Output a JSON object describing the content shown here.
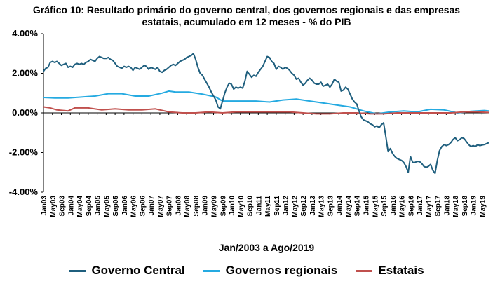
{
  "chart_data": {
    "type": "line",
    "title_line1": "Gráfico 10: Resultado primário do governo central, dos governos regionais e das empresas",
    "title_line2": "estatais, acumulado em 12 meses - % do PIB",
    "xlabel": "Jan/2003 a Ago/2019",
    "ylabel": "",
    "ylim": [
      -4,
      4
    ],
    "yticks": [
      "4.00%",
      "2.00%",
      "0.00%",
      "-2.00%",
      "-4.00%"
    ],
    "ytick_values": [
      4,
      2,
      0,
      -2,
      -4
    ],
    "x_start": "2003-01",
    "x_end": "2019-08",
    "xticks": [
      "Jan03",
      "May03",
      "Sep03",
      "Jan04",
      "May04",
      "Sep04",
      "Jan05",
      "May05",
      "Sep05",
      "Jan06",
      "May06",
      "Sep06",
      "Jan07",
      "May07",
      "Sep07",
      "Jan08",
      "May08",
      "Sep08",
      "Jan09",
      "May09",
      "Sep09",
      "Jan10",
      "May10",
      "Sep10",
      "Jan11",
      "May11",
      "Sep11",
      "Jan12",
      "May12",
      "Sep12",
      "Jan13",
      "May13",
      "Sep13",
      "Jan14",
      "May14",
      "Sep14",
      "Jan15",
      "May15",
      "Sep15",
      "Jan16",
      "May16",
      "Sep16",
      "Jan17",
      "May17",
      "Sep17",
      "Jan18",
      "May18",
      "Sep18",
      "Jan19",
      "May19"
    ],
    "grid": false,
    "legend_position": "bottom",
    "series": [
      {
        "name": "Governo Central",
        "color": "#1F5F7E",
        "points": [
          [
            "2003-01",
            2.1
          ],
          [
            "2003-02",
            2.25
          ],
          [
            "2003-03",
            2.3
          ],
          [
            "2003-04",
            2.55
          ],
          [
            "2003-05",
            2.6
          ],
          [
            "2003-06",
            2.55
          ],
          [
            "2003-07",
            2.6
          ],
          [
            "2003-08",
            2.5
          ],
          [
            "2003-09",
            2.4
          ],
          [
            "2003-10",
            2.45
          ],
          [
            "2003-11",
            2.5
          ],
          [
            "2003-12",
            2.3
          ],
          [
            "2004-01",
            2.35
          ],
          [
            "2004-02",
            2.3
          ],
          [
            "2004-03",
            2.45
          ],
          [
            "2004-04",
            2.5
          ],
          [
            "2004-05",
            2.45
          ],
          [
            "2004-06",
            2.5
          ],
          [
            "2004-07",
            2.45
          ],
          [
            "2004-08",
            2.55
          ],
          [
            "2004-09",
            2.6
          ],
          [
            "2004-10",
            2.7
          ],
          [
            "2004-11",
            2.65
          ],
          [
            "2004-12",
            2.6
          ],
          [
            "2005-01",
            2.75
          ],
          [
            "2005-02",
            2.85
          ],
          [
            "2005-03",
            2.8
          ],
          [
            "2005-04",
            2.75
          ],
          [
            "2005-05",
            2.75
          ],
          [
            "2005-06",
            2.8
          ],
          [
            "2005-07",
            2.7
          ],
          [
            "2005-08",
            2.65
          ],
          [
            "2005-09",
            2.5
          ],
          [
            "2005-10",
            2.35
          ],
          [
            "2005-11",
            2.3
          ],
          [
            "2005-12",
            2.25
          ],
          [
            "2006-01",
            2.35
          ],
          [
            "2006-02",
            2.3
          ],
          [
            "2006-03",
            2.35
          ],
          [
            "2006-04",
            2.3
          ],
          [
            "2006-05",
            2.15
          ],
          [
            "2006-06",
            2.3
          ],
          [
            "2006-07",
            2.25
          ],
          [
            "2006-08",
            2.2
          ],
          [
            "2006-09",
            2.3
          ],
          [
            "2006-10",
            2.4
          ],
          [
            "2006-11",
            2.35
          ],
          [
            "2006-12",
            2.2
          ],
          [
            "2007-01",
            2.3
          ],
          [
            "2007-02",
            2.25
          ],
          [
            "2007-03",
            2.2
          ],
          [
            "2007-04",
            2.3
          ],
          [
            "2007-05",
            2.1
          ],
          [
            "2007-06",
            2.05
          ],
          [
            "2007-07",
            2.15
          ],
          [
            "2007-08",
            2.2
          ],
          [
            "2007-09",
            2.3
          ],
          [
            "2007-10",
            2.4
          ],
          [
            "2007-11",
            2.45
          ],
          [
            "2007-12",
            2.4
          ],
          [
            "2008-01",
            2.5
          ],
          [
            "2008-02",
            2.6
          ],
          [
            "2008-03",
            2.65
          ],
          [
            "2008-04",
            2.7
          ],
          [
            "2008-05",
            2.8
          ],
          [
            "2008-06",
            2.85
          ],
          [
            "2008-07",
            2.9
          ],
          [
            "2008-08",
            3.0
          ],
          [
            "2008-09",
            2.7
          ],
          [
            "2008-10",
            2.3
          ],
          [
            "2008-11",
            2.0
          ],
          [
            "2008-12",
            1.9
          ],
          [
            "2009-01",
            1.7
          ],
          [
            "2009-02",
            1.5
          ],
          [
            "2009-03",
            1.3
          ],
          [
            "2009-04",
            1.05
          ],
          [
            "2009-05",
            0.85
          ],
          [
            "2009-06",
            0.65
          ],
          [
            "2009-07",
            0.3
          ],
          [
            "2009-08",
            0.2
          ],
          [
            "2009-09",
            0.6
          ],
          [
            "2009-10",
            1.0
          ],
          [
            "2009-11",
            1.3
          ],
          [
            "2009-12",
            1.5
          ],
          [
            "2010-01",
            1.45
          ],
          [
            "2010-02",
            1.2
          ],
          [
            "2010-03",
            1.3
          ],
          [
            "2010-04",
            1.25
          ],
          [
            "2010-05",
            1.3
          ],
          [
            "2010-06",
            1.25
          ],
          [
            "2010-07",
            1.6
          ],
          [
            "2010-08",
            2.1
          ],
          [
            "2010-09",
            1.95
          ],
          [
            "2010-10",
            1.8
          ],
          [
            "2010-11",
            1.9
          ],
          [
            "2010-12",
            1.85
          ],
          [
            "2011-01",
            2.05
          ],
          [
            "2011-02",
            2.2
          ],
          [
            "2011-03",
            2.35
          ],
          [
            "2011-04",
            2.6
          ],
          [
            "2011-05",
            2.85
          ],
          [
            "2011-06",
            2.8
          ],
          [
            "2011-07",
            2.6
          ],
          [
            "2011-08",
            2.5
          ],
          [
            "2011-09",
            2.2
          ],
          [
            "2011-10",
            2.35
          ],
          [
            "2011-11",
            2.3
          ],
          [
            "2011-12",
            2.2
          ],
          [
            "2012-01",
            2.3
          ],
          [
            "2012-02",
            2.25
          ],
          [
            "2012-03",
            2.15
          ],
          [
            "2012-04",
            2.0
          ],
          [
            "2012-05",
            1.9
          ],
          [
            "2012-06",
            1.7
          ],
          [
            "2012-07",
            1.75
          ],
          [
            "2012-08",
            1.55
          ],
          [
            "2012-09",
            1.4
          ],
          [
            "2012-10",
            1.5
          ],
          [
            "2012-11",
            1.65
          ],
          [
            "2012-12",
            1.75
          ],
          [
            "2013-01",
            1.65
          ],
          [
            "2013-02",
            1.5
          ],
          [
            "2013-03",
            1.45
          ],
          [
            "2013-04",
            1.45
          ],
          [
            "2013-05",
            1.55
          ],
          [
            "2013-06",
            1.35
          ],
          [
            "2013-07",
            1.4
          ],
          [
            "2013-08",
            1.45
          ],
          [
            "2013-09",
            1.3
          ],
          [
            "2013-10",
            1.45
          ],
          [
            "2013-11",
            1.7
          ],
          [
            "2013-12",
            1.6
          ],
          [
            "2014-01",
            1.55
          ],
          [
            "2014-02",
            1.1
          ],
          [
            "2014-03",
            1.15
          ],
          [
            "2014-04",
            1.3
          ],
          [
            "2014-05",
            1.2
          ],
          [
            "2014-06",
            0.95
          ],
          [
            "2014-07",
            0.7
          ],
          [
            "2014-08",
            0.55
          ],
          [
            "2014-09",
            0.45
          ],
          [
            "2014-10",
            0.1
          ],
          [
            "2014-11",
            -0.2
          ],
          [
            "2014-12",
            -0.35
          ],
          [
            "2015-01",
            -0.4
          ],
          [
            "2015-02",
            -0.45
          ],
          [
            "2015-03",
            -0.55
          ],
          [
            "2015-04",
            -0.6
          ],
          [
            "2015-05",
            -0.7
          ],
          [
            "2015-06",
            -0.65
          ],
          [
            "2015-07",
            -0.75
          ],
          [
            "2015-08",
            -0.6
          ],
          [
            "2015-09",
            -0.5
          ],
          [
            "2015-10",
            -1.2
          ],
          [
            "2015-11",
            -1.95
          ],
          [
            "2015-12",
            -1.8
          ],
          [
            "2016-01",
            -2.05
          ],
          [
            "2016-02",
            -2.2
          ],
          [
            "2016-03",
            -2.3
          ],
          [
            "2016-04",
            -2.35
          ],
          [
            "2016-05",
            -2.4
          ],
          [
            "2016-06",
            -2.5
          ],
          [
            "2016-07",
            -2.7
          ],
          [
            "2016-08",
            -3.0
          ],
          [
            "2016-09",
            -2.2
          ],
          [
            "2016-10",
            -2.5
          ],
          [
            "2016-11",
            -2.5
          ],
          [
            "2016-12",
            -2.45
          ],
          [
            "2017-01",
            -2.45
          ],
          [
            "2017-02",
            -2.55
          ],
          [
            "2017-03",
            -2.7
          ],
          [
            "2017-04",
            -2.75
          ],
          [
            "2017-05",
            -2.7
          ],
          [
            "2017-06",
            -2.6
          ],
          [
            "2017-07",
            -2.9
          ],
          [
            "2017-08",
            -3.05
          ],
          [
            "2017-09",
            -2.4
          ],
          [
            "2017-10",
            -1.9
          ],
          [
            "2017-11",
            -1.7
          ],
          [
            "2017-12",
            -1.6
          ],
          [
            "2018-01",
            -1.65
          ],
          [
            "2018-02",
            -1.6
          ],
          [
            "2018-03",
            -1.5
          ],
          [
            "2018-04",
            -1.35
          ],
          [
            "2018-05",
            -1.25
          ],
          [
            "2018-06",
            -1.4
          ],
          [
            "2018-07",
            -1.35
          ],
          [
            "2018-08",
            -1.25
          ],
          [
            "2018-09",
            -1.3
          ],
          [
            "2018-10",
            -1.45
          ],
          [
            "2018-11",
            -1.6
          ],
          [
            "2018-12",
            -1.7
          ],
          [
            "2019-01",
            -1.65
          ],
          [
            "2019-02",
            -1.7
          ],
          [
            "2019-03",
            -1.6
          ],
          [
            "2019-04",
            -1.65
          ],
          [
            "2019-05",
            -1.62
          ],
          [
            "2019-06",
            -1.6
          ],
          [
            "2019-07",
            -1.55
          ],
          [
            "2019-08",
            -1.5
          ]
        ]
      },
      {
        "name": "Governos regionais",
        "color": "#25AAE1",
        "points": [
          [
            "2003-01",
            0.78
          ],
          [
            "2003-06",
            0.75
          ],
          [
            "2003-12",
            0.75
          ],
          [
            "2004-06",
            0.8
          ],
          [
            "2004-12",
            0.85
          ],
          [
            "2005-06",
            0.97
          ],
          [
            "2005-12",
            0.97
          ],
          [
            "2006-06",
            0.85
          ],
          [
            "2006-12",
            0.85
          ],
          [
            "2007-06",
            1.0
          ],
          [
            "2007-09",
            1.1
          ],
          [
            "2007-12",
            1.05
          ],
          [
            "2008-06",
            1.05
          ],
          [
            "2008-12",
            0.95
          ],
          [
            "2009-06",
            0.8
          ],
          [
            "2009-09",
            0.6
          ],
          [
            "2009-12",
            0.6
          ],
          [
            "2010-06",
            0.6
          ],
          [
            "2010-12",
            0.6
          ],
          [
            "2011-06",
            0.55
          ],
          [
            "2011-12",
            0.65
          ],
          [
            "2012-06",
            0.7
          ],
          [
            "2012-12",
            0.6
          ],
          [
            "2013-06",
            0.5
          ],
          [
            "2013-12",
            0.4
          ],
          [
            "2014-06",
            0.3
          ],
          [
            "2014-12",
            0.1
          ],
          [
            "2015-06",
            -0.05
          ],
          [
            "2015-12",
            0.05
          ],
          [
            "2016-06",
            0.1
          ],
          [
            "2016-12",
            0.05
          ],
          [
            "2017-06",
            0.18
          ],
          [
            "2017-12",
            0.15
          ],
          [
            "2018-06",
            0.0
          ],
          [
            "2018-12",
            0.08
          ],
          [
            "2019-06",
            0.12
          ],
          [
            "2019-08",
            0.1
          ]
        ]
      },
      {
        "name": "Estatais",
        "color": "#C0504D",
        "points": [
          [
            "2003-01",
            0.3
          ],
          [
            "2003-04",
            0.25
          ],
          [
            "2003-07",
            0.15
          ],
          [
            "2003-12",
            0.1
          ],
          [
            "2004-03",
            0.25
          ],
          [
            "2004-09",
            0.25
          ],
          [
            "2005-03",
            0.15
          ],
          [
            "2005-09",
            0.2
          ],
          [
            "2006-03",
            0.15
          ],
          [
            "2006-09",
            0.15
          ],
          [
            "2007-03",
            0.2
          ],
          [
            "2007-09",
            0.05
          ],
          [
            "2008-03",
            0.0
          ],
          [
            "2008-09",
            0.0
          ],
          [
            "2009-03",
            0.05
          ],
          [
            "2009-09",
            0.0
          ],
          [
            "2010-03",
            0.05
          ],
          [
            "2010-09",
            0.05
          ],
          [
            "2011-03",
            0.05
          ],
          [
            "2011-09",
            0.05
          ],
          [
            "2012-03",
            0.05
          ],
          [
            "2012-09",
            0.0
          ],
          [
            "2013-03",
            -0.05
          ],
          [
            "2013-09",
            -0.05
          ],
          [
            "2014-03",
            0.0
          ],
          [
            "2014-09",
            0.0
          ],
          [
            "2015-03",
            -0.05
          ],
          [
            "2015-09",
            -0.05
          ],
          [
            "2016-03",
            0.0
          ],
          [
            "2016-09",
            0.0
          ],
          [
            "2017-03",
            0.0
          ],
          [
            "2017-09",
            0.0
          ],
          [
            "2018-03",
            0.0
          ],
          [
            "2018-09",
            0.05
          ],
          [
            "2019-03",
            0.05
          ],
          [
            "2019-08",
            0.02
          ]
        ]
      }
    ]
  }
}
